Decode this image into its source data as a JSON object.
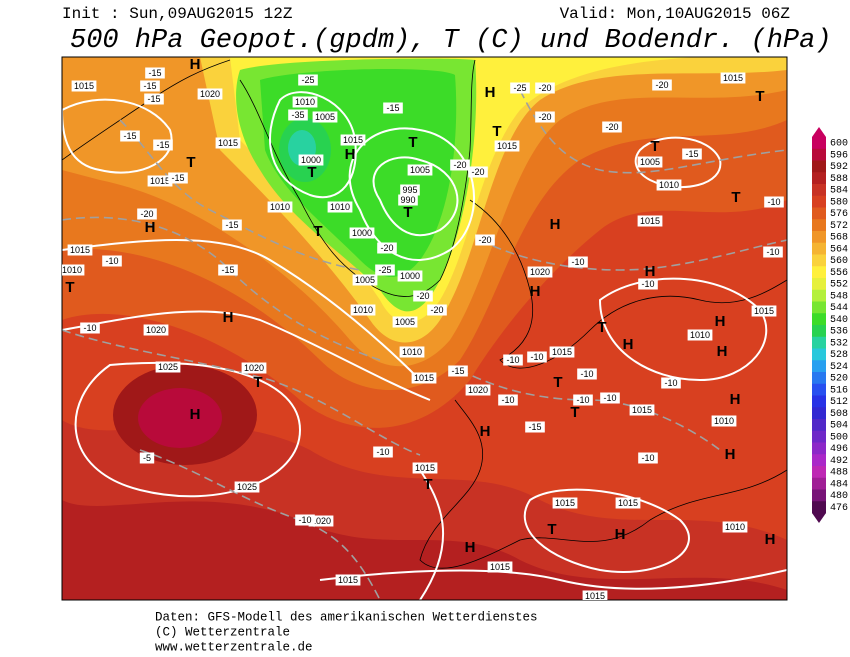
{
  "header": {
    "init": "Init : Sun,09AUG2015 12Z",
    "valid": "Valid: Mon,10AUG2015 06Z",
    "title": "500 hPa Geopot.(gpdm), T (C) und Bodendr. (hPa)"
  },
  "colorbar": {
    "levels": [
      600,
      596,
      592,
      588,
      584,
      580,
      576,
      572,
      568,
      564,
      560,
      556,
      552,
      548,
      544,
      540,
      536,
      532,
      528,
      524,
      520,
      516,
      512,
      508,
      504,
      500,
      496,
      492,
      488,
      484,
      480,
      476
    ],
    "colors": [
      "#c8005f",
      "#b80a3a",
      "#a01818",
      "#b42020",
      "#c83224",
      "#d84020",
      "#e05a1e",
      "#e8781e",
      "#f09628",
      "#f5b432",
      "#fad23c",
      "#fff03c",
      "#e6f03c",
      "#b4f03c",
      "#78e632",
      "#3cdc28",
      "#28d250",
      "#28d2a0",
      "#28c8dc",
      "#28a0f0",
      "#2878f0",
      "#2850f0",
      "#2832e6",
      "#3228d2",
      "#5028c8",
      "#6e28c8",
      "#8c28c8",
      "#aa28c8",
      "#be28b4",
      "#a01e96",
      "#781478",
      "#500a50"
    ]
  },
  "map": {
    "centers": [
      "H",
      "H",
      "H",
      "H",
      "H",
      "H",
      "H",
      "H",
      "H",
      "H",
      "H",
      "H",
      "H",
      "H",
      "H",
      "H",
      "H",
      "H",
      "T",
      "T",
      "T",
      "T",
      "T",
      "T",
      "T",
      "T",
      "T",
      "T",
      "T",
      "T",
      "T",
      "T",
      "T",
      "T"
    ],
    "labels": [
      "1015",
      "1020",
      "1015",
      "1010",
      "1005",
      "1015",
      "1000",
      "1005",
      "995",
      "990",
      "1010",
      "1010",
      "1000",
      "1015",
      "1015",
      "1015",
      "1005",
      "1010",
      "1015",
      "1015",
      "1010",
      "1005",
      "1000",
      "1010",
      "1005",
      "1010",
      "1015",
      "1020",
      "1020",
      "1015",
      "1020",
      "1025",
      "1020",
      "1015",
      "1010",
      "1015",
      "1010",
      "1015",
      "1025",
      "1020",
      "1015",
      "1015",
      "1010",
      "1015",
      "1015",
      "1015",
      "-15",
      "-15",
      "-15",
      "-15",
      "-15",
      "-15",
      "-20",
      "-15",
      "-10",
      "-10",
      "-15",
      "-25",
      "-35",
      "-15",
      "-20",
      "-20",
      "-20",
      "-25",
      "-20",
      "-20",
      "-20",
      "-25",
      "-20",
      "-20",
      "-20",
      "-15",
      "-10",
      "-10",
      "-20",
      "-10",
      "-10",
      "-10",
      "-10",
      "-15",
      "-10",
      "-10",
      "-10",
      "-10",
      "-15",
      "-10",
      "-10",
      "-10",
      "-5",
      "-10"
    ]
  },
  "footer": [
    "Daten: GFS-Modell des amerikanischen Wetterdienstes",
    "(C) Wetterzentrale",
    "www.wetterzentrale.de"
  ]
}
